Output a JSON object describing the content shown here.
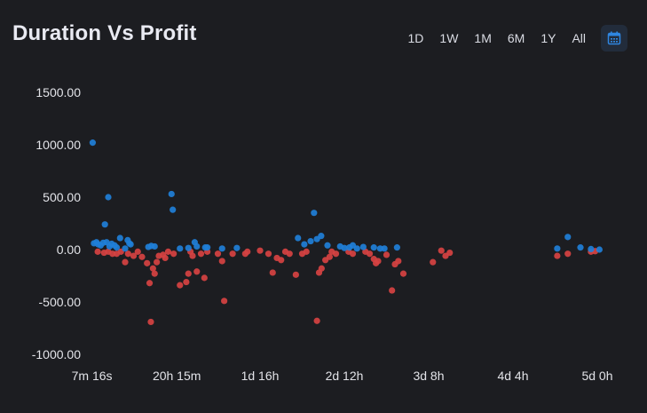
{
  "header": {
    "title": "Duration Vs Profit",
    "ranges": [
      "1D",
      "1W",
      "1M",
      "6M",
      "1Y",
      "All"
    ]
  },
  "colors": {
    "background": "#1c1d21",
    "positive": "#1f7fd8",
    "negative": "#d64242",
    "calendar_accent": "#2f86e0"
  },
  "chart_data": {
    "type": "scatter",
    "title": "Duration Vs Profit",
    "xlabel": "",
    "ylabel": "",
    "x_unit": "hours",
    "x_tick_labels": [
      "7m 16s",
      "20h 15m",
      "1d 16h",
      "2d 12h",
      "3d 8h",
      "4d 4h",
      "5d 0h"
    ],
    "x_tick_values": [
      0.121,
      20.25,
      40.0,
      60.0,
      80.0,
      100.0,
      120.0
    ],
    "y_tick_labels": [
      "1500.00",
      "1000.00",
      "500.00",
      "0.00",
      "-500.00",
      "-1000.00"
    ],
    "ylim": [
      -1000,
      1500
    ],
    "grid": false,
    "series": [
      {
        "color": "#1f7fd8",
        "points": [
          [
            0.3,
            1020
          ],
          [
            0.6,
            60
          ],
          [
            1.2,
            70
          ],
          [
            1.6,
            50
          ],
          [
            2.2,
            40
          ],
          [
            2.8,
            65
          ],
          [
            3.2,
            240
          ],
          [
            3.6,
            70
          ],
          [
            4,
            500
          ],
          [
            4.3,
            30
          ],
          [
            4.8,
            55
          ],
          [
            5.5,
            40
          ],
          [
            6,
            20
          ],
          [
            6.8,
            110
          ],
          [
            8,
            10
          ],
          [
            8.6,
            90
          ],
          [
            9,
            60
          ],
          [
            9.3,
            50
          ],
          [
            13.5,
            25
          ],
          [
            14.2,
            35
          ],
          [
            15,
            30
          ],
          [
            19,
            530
          ],
          [
            19.3,
            380
          ],
          [
            21,
            10
          ],
          [
            23,
            15
          ],
          [
            24.5,
            70
          ],
          [
            25,
            30
          ],
          [
            27,
            20
          ],
          [
            27.5,
            20
          ],
          [
            31,
            10
          ],
          [
            34.5,
            15
          ],
          [
            49,
            110
          ],
          [
            50.5,
            50
          ],
          [
            52,
            80
          ],
          [
            52.8,
            350
          ],
          [
            53.5,
            100
          ],
          [
            54.5,
            130
          ],
          [
            56,
            40
          ],
          [
            59,
            30
          ],
          [
            60,
            15
          ],
          [
            61.2,
            20
          ],
          [
            62,
            40
          ],
          [
            63,
            10
          ],
          [
            64.5,
            25
          ],
          [
            67,
            20
          ],
          [
            68.5,
            10
          ],
          [
            69.5,
            10
          ],
          [
            72.5,
            20
          ],
          [
            110.5,
            10
          ],
          [
            113,
            120
          ],
          [
            116,
            20
          ],
          [
            118.5,
            5
          ],
          [
            120.5,
            0
          ]
        ]
      },
      {
        "color": "#d64242",
        "points": [
          [
            1.5,
            -20
          ],
          [
            3,
            -30
          ],
          [
            4,
            -20
          ],
          [
            5,
            -40
          ],
          [
            6,
            -40
          ],
          [
            7,
            -20
          ],
          [
            8,
            -120
          ],
          [
            8.7,
            -40
          ],
          [
            10,
            -60
          ],
          [
            11,
            -20
          ],
          [
            12,
            -70
          ],
          [
            13.2,
            -130
          ],
          [
            13.8,
            -320
          ],
          [
            14.1,
            -690
          ],
          [
            14.6,
            -180
          ],
          [
            15,
            -230
          ],
          [
            15.5,
            -120
          ],
          [
            16,
            -60
          ],
          [
            17,
            -50
          ],
          [
            17.5,
            -80
          ],
          [
            18.2,
            -20
          ],
          [
            19.5,
            -40
          ],
          [
            21,
            -340
          ],
          [
            22.5,
            -310
          ],
          [
            23,
            -230
          ],
          [
            23.5,
            -20
          ],
          [
            24,
            -60
          ],
          [
            25,
            -210
          ],
          [
            26,
            -40
          ],
          [
            26.8,
            -270
          ],
          [
            27.5,
            -20
          ],
          [
            30,
            -40
          ],
          [
            31,
            -110
          ],
          [
            31.5,
            -490
          ],
          [
            33.5,
            -40
          ],
          [
            36.5,
            -40
          ],
          [
            37,
            -20
          ],
          [
            40,
            -10
          ],
          [
            42,
            -40
          ],
          [
            43,
            -220
          ],
          [
            44,
            -80
          ],
          [
            45,
            -100
          ],
          [
            46,
            -20
          ],
          [
            47,
            -40
          ],
          [
            48.5,
            -240
          ],
          [
            50,
            -40
          ],
          [
            51,
            -20
          ],
          [
            53.5,
            -680
          ],
          [
            54,
            -220
          ],
          [
            54.6,
            -180
          ],
          [
            55.5,
            -100
          ],
          [
            56.5,
            -70
          ],
          [
            57,
            -20
          ],
          [
            58,
            -40
          ],
          [
            61,
            -20
          ],
          [
            62,
            -40
          ],
          [
            65,
            -20
          ],
          [
            66,
            -40
          ],
          [
            67,
            -90
          ],
          [
            67.5,
            -130
          ],
          [
            68,
            -110
          ],
          [
            70,
            -50
          ],
          [
            71.3,
            -390
          ],
          [
            72,
            -140
          ],
          [
            72.8,
            -110
          ],
          [
            74,
            -230
          ],
          [
            81,
            -120
          ],
          [
            83,
            -10
          ],
          [
            84,
            -60
          ],
          [
            85,
            -30
          ],
          [
            110.5,
            -60
          ],
          [
            113,
            -40
          ],
          [
            118.5,
            -20
          ],
          [
            119.5,
            -15
          ]
        ]
      }
    ]
  }
}
